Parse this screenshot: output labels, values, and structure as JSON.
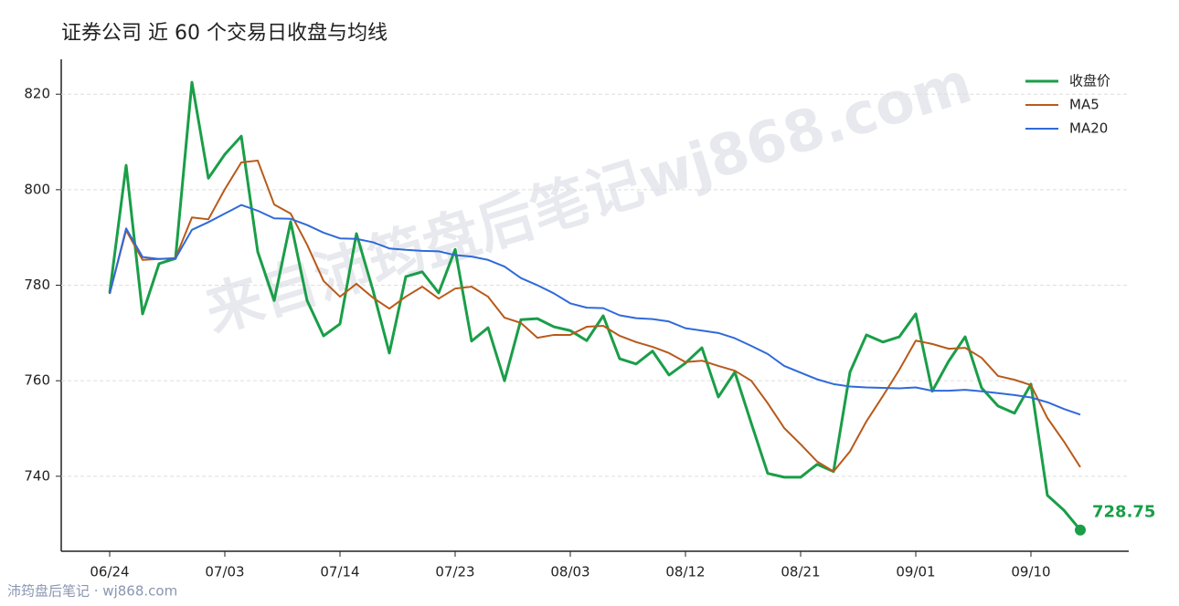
{
  "chart_data": {
    "type": "line",
    "title": "证券公司 近 60 个交易日收盘与均线",
    "watermark": "来自沛筠盘后笔记wj868.com",
    "source": "沛筠盘后笔记 · wj868.com",
    "categories": [
      "06/24",
      null,
      null,
      null,
      null,
      null,
      null,
      "07/03",
      null,
      null,
      null,
      null,
      null,
      null,
      "07/14",
      null,
      null,
      null,
      null,
      null,
      null,
      "07/23",
      null,
      null,
      null,
      null,
      null,
      null,
      "08/03",
      null,
      null,
      null,
      null,
      null,
      null,
      "08/12",
      null,
      null,
      null,
      null,
      null,
      null,
      "08/21",
      null,
      null,
      null,
      null,
      null,
      null,
      "09/01",
      null,
      null,
      null,
      null,
      null,
      null,
      "09/10",
      null,
      null,
      null
    ],
    "series": [
      {
        "name": "收盘价",
        "color": "#1a9e48",
        "width": 3,
        "values": [
          778.4,
          805.1,
          774.0,
          784.5,
          785.6,
          822.5,
          802.4,
          807.4,
          811.2,
          787.0,
          776.8,
          793.3,
          776.8,
          769.4,
          771.9,
          790.8,
          779.0,
          765.8,
          781.8,
          782.8,
          778.4,
          787.5,
          768.3,
          771.1,
          760.0,
          772.8,
          773.0,
          771.3,
          770.5,
          768.4,
          773.6,
          764.6,
          763.5,
          766.2,
          761.2,
          763.7,
          766.9,
          756.6,
          761.8,
          751.1,
          740.6,
          739.8,
          739.8,
          742.5,
          741.0,
          761.8,
          769.6,
          768.1,
          769.2,
          774.0,
          757.8,
          764.1,
          769.2,
          758.5,
          754.7,
          753.2,
          759.3,
          736.0,
          732.9,
          728.75
        ]
      },
      {
        "name": "MA5",
        "color": "#b85a1a",
        "width": 2,
        "values": [
          778.2,
          791.5,
          785.3,
          785.5,
          785.7,
          794.2,
          793.8,
          800.1,
          805.7,
          806.1,
          796.9,
          795.0,
          788.5,
          780.9,
          777.6,
          780.3,
          777.4,
          775.1,
          777.6,
          779.7,
          777.2,
          779.3,
          779.7,
          777.6,
          773.2,
          772.1,
          769.0,
          769.6,
          769.6,
          771.3,
          771.5,
          769.4,
          768.1,
          767.1,
          765.8,
          763.9,
          764.2,
          763.1,
          762.1,
          760.0,
          755.3,
          750.1,
          746.7,
          743.1,
          741.0,
          745.2,
          751.5,
          756.8,
          762.3,
          768.4,
          767.7,
          766.7,
          766.9,
          764.8,
          761.0,
          760.2,
          759.1,
          752.2,
          747.3,
          741.9
        ]
      },
      {
        "name": "MA20",
        "color": "#2f6ad9",
        "width": 2,
        "values": [
          778.2,
          791.9,
          785.9,
          785.5,
          785.6,
          791.6,
          793.2,
          795.0,
          796.8,
          795.6,
          794.0,
          793.9,
          792.6,
          791.0,
          789.8,
          789.7,
          789.0,
          787.7,
          787.4,
          787.2,
          787.1,
          786.3,
          786.0,
          785.3,
          783.9,
          781.5,
          780.0,
          778.3,
          776.2,
          775.3,
          775.2,
          773.7,
          773.1,
          772.9,
          772.4,
          771.0,
          770.5,
          770.0,
          768.9,
          767.3,
          765.6,
          763.1,
          761.7,
          760.3,
          759.3,
          758.8,
          758.6,
          758.5,
          758.4,
          758.6,
          757.9,
          757.9,
          758.1,
          757.8,
          757.4,
          757.0,
          756.5,
          755.5,
          754.1,
          752.9
        ]
      }
    ],
    "ylim": [
      724.3,
      827.3
    ],
    "yticks": [
      740,
      760,
      780,
      800,
      820
    ],
    "grid": true,
    "legend": "upper right",
    "last_label": true
  }
}
